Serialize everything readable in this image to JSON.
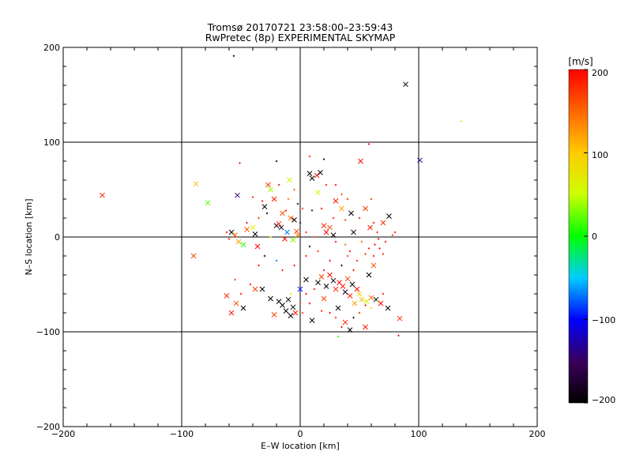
{
  "chart_data": {
    "type": "scatter",
    "title": "Tromsø 20170721 23:58:00–23:59:43",
    "subtitle": "RwPretec (8p) EXPERIMENTAL SKYMAP",
    "xlabel": "E–W location [km]",
    "ylabel": "N–S location [km]",
    "xlim": [
      -200,
      200
    ],
    "ylim": [
      -200,
      200
    ],
    "xticks": [
      "−200",
      "−100",
      "0",
      "100",
      "200"
    ],
    "yticks": [
      "−200",
      "−100",
      "0",
      "100",
      "200"
    ],
    "grid_lines_x": [
      -100,
      0,
      100
    ],
    "grid_lines_y": [
      -100,
      0,
      100
    ],
    "colorbar": {
      "unit_label": "[m/s]",
      "range": [
        -200,
        200
      ],
      "tick_labels": [
        "200",
        "100",
        "0",
        "−100",
        "−200"
      ],
      "tick_values": [
        200,
        100,
        0,
        -100,
        -200
      ]
    },
    "marker_legend": "x = larger cross markers, + = small point markers; color = line-of-sight velocity [m/s]",
    "points_x_markers": [
      {
        "x": -167,
        "y": 44,
        "v": 185
      },
      {
        "x": 89,
        "y": 161,
        "v": -200
      },
      {
        "x": 101,
        "y": 81,
        "v": -130
      },
      {
        "x": -90,
        "y": -20,
        "v": 165
      },
      {
        "x": -88,
        "y": 56,
        "v": 110
      },
      {
        "x": -78,
        "y": 36,
        "v": 20
      },
      {
        "x": -58,
        "y": 5,
        "v": -200
      },
      {
        "x": -55,
        "y": 2,
        "v": 150
      },
      {
        "x": -53,
        "y": 44,
        "v": -150
      },
      {
        "x": -52,
        "y": -5,
        "v": 120
      },
      {
        "x": -48,
        "y": -8,
        "v": 10
      },
      {
        "x": -45,
        "y": 8,
        "v": 160
      },
      {
        "x": -40,
        "y": 10,
        "v": 60
      },
      {
        "x": -38,
        "y": 3,
        "v": -200
      },
      {
        "x": -36,
        "y": -10,
        "v": 200
      },
      {
        "x": -30,
        "y": 32,
        "v": -200
      },
      {
        "x": -27,
        "y": 55,
        "v": 170
      },
      {
        "x": -25,
        "y": 50,
        "v": 40
      },
      {
        "x": -22,
        "y": 40,
        "v": 190
      },
      {
        "x": -20,
        "y": 12,
        "v": -200
      },
      {
        "x": -18,
        "y": 14,
        "v": 180
      },
      {
        "x": -16,
        "y": 10,
        "v": -180
      },
      {
        "x": -15,
        "y": 25,
        "v": 160
      },
      {
        "x": -13,
        "y": -2,
        "v": 200
      },
      {
        "x": -11,
        "y": 5,
        "v": -70
      },
      {
        "x": -9,
        "y": 60,
        "v": 50
      },
      {
        "x": -8,
        "y": 20,
        "v": 150
      },
      {
        "x": -6,
        "y": -3,
        "v": 30
      },
      {
        "x": -5,
        "y": 18,
        "v": -200
      },
      {
        "x": -3,
        "y": 6,
        "v": 170
      },
      {
        "x": -2,
        "y": 2,
        "v": 140
      },
      {
        "x": 8,
        "y": 67,
        "v": -200
      },
      {
        "x": 10,
        "y": 62,
        "v": -200
      },
      {
        "x": 14,
        "y": 65,
        "v": 190
      },
      {
        "x": 17,
        "y": 68,
        "v": -200
      },
      {
        "x": 15,
        "y": 47,
        "v": 60
      },
      {
        "x": 20,
        "y": 12,
        "v": 180
      },
      {
        "x": 22,
        "y": 5,
        "v": 200
      },
      {
        "x": 25,
        "y": 10,
        "v": 160
      },
      {
        "x": 28,
        "y": 2,
        "v": -200
      },
      {
        "x": 30,
        "y": 38,
        "v": 195
      },
      {
        "x": 35,
        "y": 30,
        "v": 120
      },
      {
        "x": 43,
        "y": 25,
        "v": -200
      },
      {
        "x": 45,
        "y": 5,
        "v": -180
      },
      {
        "x": 51,
        "y": 80,
        "v": 195
      },
      {
        "x": 55,
        "y": 30,
        "v": 175
      },
      {
        "x": 59,
        "y": 10,
        "v": 190
      },
      {
        "x": 70,
        "y": 15,
        "v": 180
      },
      {
        "x": 75,
        "y": 22,
        "v": -200
      },
      {
        "x": -62,
        "y": -62,
        "v": 180
      },
      {
        "x": -58,
        "y": -80,
        "v": 190
      },
      {
        "x": -54,
        "y": -70,
        "v": 160
      },
      {
        "x": -48,
        "y": -75,
        "v": -200
      },
      {
        "x": -38,
        "y": -55,
        "v": 170
      },
      {
        "x": -32,
        "y": -55,
        "v": -200
      },
      {
        "x": -25,
        "y": -65,
        "v": -200
      },
      {
        "x": -22,
        "y": -82,
        "v": 170
      },
      {
        "x": -18,
        "y": -68,
        "v": -200
      },
      {
        "x": -15,
        "y": -72,
        "v": -200
      },
      {
        "x": -12,
        "y": -78,
        "v": -200
      },
      {
        "x": -10,
        "y": -66,
        "v": -200
      },
      {
        "x": -8,
        "y": -83,
        "v": -200
      },
      {
        "x": -6,
        "y": -74,
        "v": -200
      },
      {
        "x": -4,
        "y": -80,
        "v": 190
      },
      {
        "x": 0,
        "y": -55,
        "v": -90
      },
      {
        "x": 5,
        "y": -45,
        "v": -200
      },
      {
        "x": 10,
        "y": -88,
        "v": -200
      },
      {
        "x": 15,
        "y": -48,
        "v": -200
      },
      {
        "x": 18,
        "y": -42,
        "v": 170
      },
      {
        "x": 22,
        "y": -52,
        "v": -200
      },
      {
        "x": 25,
        "y": -40,
        "v": 190
      },
      {
        "x": 28,
        "y": -46,
        "v": -200
      },
      {
        "x": 30,
        "y": -55,
        "v": 180
      },
      {
        "x": 33,
        "y": -48,
        "v": 200
      },
      {
        "x": 36,
        "y": -52,
        "v": 190
      },
      {
        "x": 38,
        "y": -58,
        "v": -180
      },
      {
        "x": 40,
        "y": -44,
        "v": 170
      },
      {
        "x": 42,
        "y": -62,
        "v": 185
      },
      {
        "x": 44,
        "y": -50,
        "v": -200
      },
      {
        "x": 46,
        "y": -70,
        "v": 120
      },
      {
        "x": 48,
        "y": -55,
        "v": 200
      },
      {
        "x": 50,
        "y": -60,
        "v": 90
      },
      {
        "x": 52,
        "y": -66,
        "v": 110
      },
      {
        "x": 56,
        "y": -68,
        "v": 60
      },
      {
        "x": 60,
        "y": -64,
        "v": 150
      },
      {
        "x": 64,
        "y": -66,
        "v": -200
      },
      {
        "x": 68,
        "y": -70,
        "v": 200
      },
      {
        "x": 74,
        "y": -75,
        "v": -200
      },
      {
        "x": 84,
        "y": -86,
        "v": 180
      },
      {
        "x": 55,
        "y": -95,
        "v": 190
      },
      {
        "x": 42,
        "y": -98,
        "v": -200
      },
      {
        "x": 38,
        "y": -90,
        "v": 180
      },
      {
        "x": 32,
        "y": -75,
        "v": -200
      },
      {
        "x": 20,
        "y": -65,
        "v": 170
      },
      {
        "x": 58,
        "y": -40,
        "v": -200
      },
      {
        "x": 62,
        "y": -30,
        "v": 160
      }
    ],
    "points_plus_markers": [
      {
        "x": -56,
        "y": 191,
        "v": -200
      },
      {
        "x": 136,
        "y": 122,
        "v": 90
      },
      {
        "x": 58,
        "y": 98,
        "v": 200
      },
      {
        "x": -51,
        "y": 78,
        "v": 195
      },
      {
        "x": 8,
        "y": 85,
        "v": 180
      },
      {
        "x": 20,
        "y": 82,
        "v": -200
      },
      {
        "x": -20,
        "y": 80,
        "v": -200
      },
      {
        "x": -32,
        "y": 38,
        "v": 200
      },
      {
        "x": -40,
        "y": 42,
        "v": 190
      },
      {
        "x": -10,
        "y": 40,
        "v": 150
      },
      {
        "x": 2,
        "y": 30,
        "v": 170
      },
      {
        "x": 10,
        "y": 28,
        "v": -160
      },
      {
        "x": 18,
        "y": 30,
        "v": 200
      },
      {
        "x": 28,
        "y": 20,
        "v": 190
      },
      {
        "x": 38,
        "y": 18,
        "v": 175
      },
      {
        "x": 50,
        "y": 20,
        "v": 195
      },
      {
        "x": 62,
        "y": 15,
        "v": 200
      },
      {
        "x": 65,
        "y": 5,
        "v": 185
      },
      {
        "x": 60,
        "y": 40,
        "v": 180
      },
      {
        "x": 66,
        "y": -2,
        "v": 200
      },
      {
        "x": 63,
        "y": -8,
        "v": 195
      },
      {
        "x": 67,
        "y": -12,
        "v": 200
      },
      {
        "x": 70,
        "y": -18,
        "v": 190
      },
      {
        "x": 58,
        "y": -12,
        "v": 200
      },
      {
        "x": 55,
        "y": -18,
        "v": 185
      },
      {
        "x": 62,
        "y": -20,
        "v": 200
      },
      {
        "x": 72,
        "y": -5,
        "v": 200
      },
      {
        "x": 78,
        "y": 2,
        "v": 180
      },
      {
        "x": 80,
        "y": 5,
        "v": 190
      },
      {
        "x": 52,
        "y": -5,
        "v": 150
      },
      {
        "x": -25,
        "y": 0,
        "v": 60
      },
      {
        "x": -30,
        "y": -20,
        "v": -200
      },
      {
        "x": -35,
        "y": -30,
        "v": 200
      },
      {
        "x": -20,
        "y": -25,
        "v": -70
      },
      {
        "x": -15,
        "y": -35,
        "v": 180
      },
      {
        "x": -5,
        "y": -30,
        "v": 200
      },
      {
        "x": 5,
        "y": -20,
        "v": 190
      },
      {
        "x": 8,
        "y": -10,
        "v": -200
      },
      {
        "x": 15,
        "y": -15,
        "v": 180
      },
      {
        "x": 25,
        "y": -25,
        "v": 200
      },
      {
        "x": 35,
        "y": -30,
        "v": -200
      },
      {
        "x": 40,
        "y": -20,
        "v": 170
      },
      {
        "x": 45,
        "y": -35,
        "v": 195
      },
      {
        "x": 20,
        "y": -35,
        "v": 200
      },
      {
        "x": 12,
        "y": -55,
        "v": 190
      },
      {
        "x": 5,
        "y": -60,
        "v": 200
      },
      {
        "x": 0,
        "y": -70,
        "v": 185
      },
      {
        "x": -8,
        "y": -60,
        "v": 80
      },
      {
        "x": 2,
        "y": -80,
        "v": 170
      },
      {
        "x": 8,
        "y": -70,
        "v": 200
      },
      {
        "x": 18,
        "y": -78,
        "v": 190
      },
      {
        "x": 25,
        "y": -80,
        "v": 200
      },
      {
        "x": 30,
        "y": -85,
        "v": 180
      },
      {
        "x": 35,
        "y": -95,
        "v": 200
      },
      {
        "x": 45,
        "y": -85,
        "v": -200
      },
      {
        "x": 50,
        "y": -80,
        "v": 185
      },
      {
        "x": 55,
        "y": -72,
        "v": 200
      },
      {
        "x": 60,
        "y": -75,
        "v": 90
      },
      {
        "x": 65,
        "y": -68,
        "v": 70
      },
      {
        "x": 70,
        "y": -60,
        "v": 195
      },
      {
        "x": 32,
        "y": -105,
        "v": 10
      },
      {
        "x": 83,
        "y": -104,
        "v": 200
      },
      {
        "x": -42,
        "y": -50,
        "v": 190
      },
      {
        "x": -50,
        "y": -60,
        "v": 200
      },
      {
        "x": -55,
        "y": -45,
        "v": 175
      },
      {
        "x": -62,
        "y": 5,
        "v": 200
      },
      {
        "x": -60,
        "y": -2,
        "v": 190
      },
      {
        "x": -45,
        "y": 15,
        "v": 200
      },
      {
        "x": -35,
        "y": 20,
        "v": 180
      },
      {
        "x": -28,
        "y": 25,
        "v": -200
      },
      {
        "x": -12,
        "y": 28,
        "v": 200
      },
      {
        "x": 0,
        "y": 15,
        "v": -200
      },
      {
        "x": 5,
        "y": 5,
        "v": 190
      },
      {
        "x": 12,
        "y": 0,
        "v": 170
      },
      {
        "x": 30,
        "y": -5,
        "v": 200
      },
      {
        "x": 38,
        "y": -8,
        "v": 150
      },
      {
        "x": 42,
        "y": -15,
        "v": 200
      },
      {
        "x": 48,
        "y": -25,
        "v": 185
      },
      {
        "x": 22,
        "y": 55,
        "v": 195
      },
      {
        "x": 30,
        "y": 55,
        "v": 200
      },
      {
        "x": 40,
        "y": 40,
        "v": 185
      },
      {
        "x": 35,
        "y": 45,
        "v": 170
      },
      {
        "x": -5,
        "y": 50,
        "v": 160
      },
      {
        "x": -2,
        "y": 35,
        "v": -200
      },
      {
        "x": -18,
        "y": 55,
        "v": 200
      }
    ]
  }
}
